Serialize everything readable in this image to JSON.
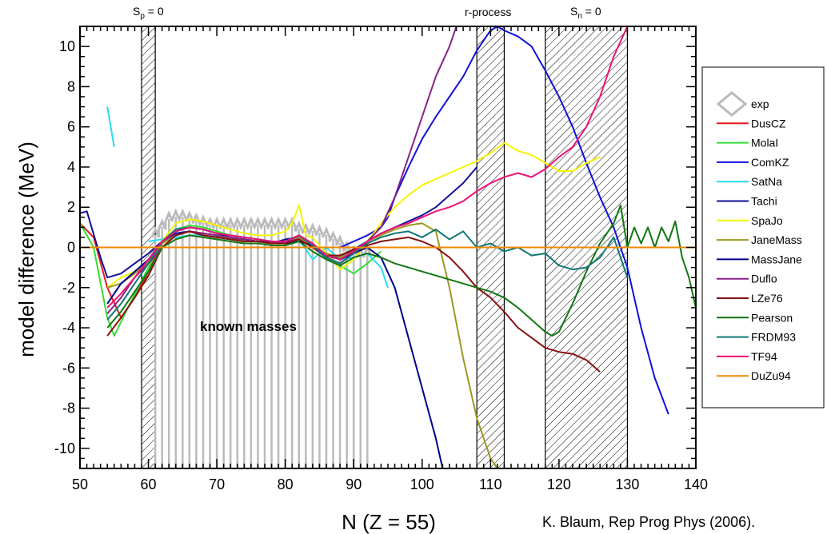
{
  "chart_data": {
    "type": "line",
    "xlabel": "N (Z = 55)",
    "ylabel": "model difference (MeV)",
    "xlim": [
      50,
      140
    ],
    "ylim": [
      -11,
      11
    ],
    "x_ticks": [
      50,
      60,
      70,
      80,
      90,
      100,
      110,
      120,
      130,
      140
    ],
    "y_ticks": [
      -10,
      -8,
      -6,
      -4,
      -2,
      0,
      2,
      4,
      6,
      8,
      10
    ],
    "grid": false,
    "legend_position": "right",
    "credit": "K. Blaum, Rep Prog Phys (2006).",
    "annotations": {
      "sp_label": "S",
      "sp_sub": "p",
      "sp_rest": " = 0",
      "sn_label": "S",
      "sn_sub": "n",
      "sn_rest": " = 0",
      "rprocess": "r-process",
      "known_masses": "known masses"
    },
    "hatched_regions": [
      [
        59,
        61
      ],
      [
        108,
        112
      ],
      [
        118,
        130
      ]
    ],
    "exp": {
      "name": "exp",
      "color": "#bbbbbb",
      "x_range": [
        61,
        92
      ],
      "y_top": [
        0.5,
        0.9,
        1.3,
        1.4,
        1.4,
        1.3,
        1.2,
        1.1,
        1.0,
        1.0,
        1.0,
        1.0,
        1.0,
        1.0,
        1.0,
        1.0,
        1.0,
        1.0,
        1.0,
        1.0,
        1.0,
        0.8,
        0.7,
        0.7,
        0.6,
        0.5,
        0.3,
        0.1,
        -0.2,
        -0.4,
        -0.5,
        -0.4
      ]
    },
    "series": [
      {
        "name": "DusCZ",
        "color": "#e41a1c",
        "x": [
          50,
          52,
          54,
          56,
          58,
          60,
          62,
          64,
          66,
          68,
          70,
          72,
          74,
          76,
          78,
          80,
          82,
          84,
          86,
          88,
          90,
          92
        ],
        "y": [
          1.2,
          0.5,
          -2.0,
          -3.5,
          -2.5,
          -1.2,
          0.2,
          0.6,
          0.8,
          0.7,
          0.6,
          0.4,
          0.4,
          0.3,
          0.2,
          0.2,
          0.5,
          0.1,
          -0.5,
          -0.8,
          -0.2,
          0.2
        ]
      },
      {
        "name": "MolaI",
        "color": "#33dd33",
        "x": [
          50,
          52,
          54,
          55,
          57,
          60,
          62,
          64,
          66,
          68,
          70,
          72,
          74,
          76,
          78,
          80,
          82,
          84,
          86,
          88,
          90,
          92,
          94
        ],
        "y": [
          1.2,
          0.0,
          -3.5,
          -4.4,
          -3.0,
          -1.0,
          0.3,
          0.9,
          1.1,
          1.0,
          0.8,
          0.6,
          0.5,
          0.4,
          0.3,
          0.3,
          0.6,
          0.2,
          -0.6,
          -0.9,
          -1.3,
          -0.8,
          -0.2
        ]
      },
      {
        "name": "ComKZ",
        "color": "#1111dd",
        "x": [
          88,
          90,
          92,
          94,
          95,
          96,
          98,
          100,
          102,
          104,
          106,
          108,
          110,
          111,
          112,
          114,
          116,
          118,
          120,
          122,
          124,
          126,
          128,
          130,
          132,
          134,
          136
        ],
        "y": [
          0.0,
          0.3,
          0.6,
          1.0,
          1.5,
          2.5,
          4.0,
          5.4,
          6.5,
          7.5,
          8.5,
          9.8,
          10.8,
          11.0,
          10.8,
          10.5,
          10.0,
          8.8,
          7.5,
          6.0,
          4.2,
          2.5,
          1.0,
          -1.0,
          -4.0,
          -6.5,
          -8.3
        ]
      },
      {
        "name": "SatNa",
        "color": "#22ddee",
        "x": [
          54,
          55,
          60,
          62,
          64,
          66,
          68,
          70,
          72,
          74,
          76,
          78,
          80,
          82,
          84,
          86,
          88,
          90,
          92,
          94,
          95
        ],
        "y": [
          7.0,
          5.0,
          0.3,
          0.4,
          0.5,
          0.6,
          0.6,
          0.5,
          0.4,
          0.3,
          0.3,
          0.2,
          0.3,
          0.4,
          -0.6,
          0.0,
          -0.6,
          -0.5,
          -0.3,
          -1.0,
          -2.0
        ],
        "gap_after_index": 1
      },
      {
        "name": "Tachi",
        "color": "#111199",
        "x": [
          50,
          51,
          53,
          54,
          56,
          58,
          60,
          62,
          64,
          66,
          68,
          70,
          72,
          74,
          76,
          78,
          80,
          82,
          84,
          86,
          88,
          90,
          92,
          94,
          96,
          98,
          100,
          102,
          104,
          106,
          108
        ],
        "y": [
          1.7,
          1.8,
          -0.5,
          -1.5,
          -1.3,
          -0.8,
          -0.3,
          0.3,
          0.7,
          0.8,
          0.6,
          0.5,
          0.4,
          0.3,
          0.3,
          0.2,
          0.4,
          0.5,
          0.0,
          -0.5,
          -0.5,
          -0.1,
          0.3,
          0.7,
          1.0,
          1.3,
          1.6,
          2.0,
          2.6,
          3.2,
          4.0
        ]
      },
      {
        "name": "SpaJo",
        "color": "#f5f500",
        "x": [
          54,
          56,
          58,
          60,
          62,
          64,
          66,
          68,
          70,
          72,
          74,
          76,
          78,
          80,
          81,
          82,
          83,
          84,
          86,
          88,
          90,
          92,
          94,
          96,
          98,
          100,
          102,
          104,
          106,
          108,
          110,
          112,
          114,
          116,
          118,
          120,
          122,
          124,
          126
        ],
        "y": [
          -2.0,
          -1.5,
          -1.2,
          -0.8,
          0.3,
          1.2,
          1.4,
          1.3,
          1.1,
          0.9,
          0.7,
          0.6,
          0.6,
          0.8,
          1.2,
          2.1,
          0.6,
          0.5,
          -0.3,
          -1.1,
          -0.6,
          0.3,
          1.2,
          2.0,
          2.6,
          3.1,
          3.4,
          3.7,
          4.0,
          4.3,
          4.7,
          5.2,
          4.8,
          4.6,
          4.2,
          3.8,
          3.8,
          4.2,
          4.5
        ]
      },
      {
        "name": "JaneMass",
        "color": "#999922",
        "x": [
          54,
          56,
          58,
          60,
          62,
          64,
          66,
          68,
          70,
          72,
          74,
          76,
          78,
          80,
          82,
          84,
          86,
          88,
          90,
          92,
          94,
          96,
          98,
          100,
          102,
          104,
          106,
          108,
          110,
          111
        ],
        "y": [
          -2.0,
          -1.8,
          -1.3,
          -0.7,
          0.2,
          0.6,
          0.8,
          0.7,
          0.6,
          0.4,
          0.3,
          0.3,
          0.2,
          0.2,
          0.5,
          0.0,
          -0.3,
          -0.5,
          -0.2,
          0.3,
          0.6,
          0.9,
          1.1,
          1.2,
          0.8,
          -2.0,
          -5.5,
          -8.5,
          -10.5,
          -11.0
        ]
      },
      {
        "name": "MassJane",
        "color": "#000088",
        "x": [
          54,
          56,
          58,
          60,
          62,
          64,
          66,
          68,
          70,
          72,
          74,
          76,
          78,
          80,
          82,
          84,
          86,
          88,
          90,
          92,
          94,
          96,
          98,
          100,
          102,
          103
        ],
        "y": [
          -2.8,
          -1.8,
          -1.2,
          -0.6,
          0.3,
          0.8,
          1.0,
          0.9,
          0.7,
          0.5,
          0.4,
          0.3,
          0.3,
          0.2,
          0.3,
          0.1,
          -0.4,
          -0.6,
          -0.3,
          0.0,
          -0.5,
          -2.0,
          -4.5,
          -7.0,
          -9.5,
          -11.0
        ]
      },
      {
        "name": "Duflo",
        "color": "#882288",
        "x": [
          54,
          56,
          58,
          60,
          62,
          64,
          66,
          68,
          70,
          72,
          74,
          76,
          78,
          80,
          82,
          84,
          86,
          88,
          90,
          92,
          94,
          96,
          98,
          100,
          102,
          104,
          105
        ],
        "y": [
          -3.3,
          -2.5,
          -1.5,
          -0.8,
          0.0,
          0.6,
          0.8,
          0.7,
          0.6,
          0.5,
          0.4,
          0.3,
          0.2,
          0.3,
          0.4,
          0.0,
          -0.5,
          -0.8,
          -0.3,
          0.3,
          1.0,
          2.5,
          4.5,
          6.5,
          8.5,
          10.0,
          11.0
        ]
      },
      {
        "name": "LZe76",
        "color": "#881111",
        "x": [
          54,
          56,
          58,
          60,
          62,
          64,
          66,
          68,
          70,
          72,
          74,
          76,
          78,
          80,
          82,
          84,
          86,
          88,
          90,
          92,
          94,
          96,
          98,
          100,
          102,
          104,
          106,
          108,
          110,
          112,
          114,
          116,
          118,
          120,
          122,
          124,
          126
        ],
        "y": [
          -4.4,
          -3.5,
          -2.5,
          -1.4,
          0.0,
          0.6,
          0.8,
          0.6,
          0.5,
          0.4,
          0.3,
          0.3,
          0.2,
          0.2,
          0.4,
          0.0,
          -0.4,
          -0.4,
          -0.1,
          0.1,
          0.3,
          0.4,
          0.5,
          0.3,
          0.0,
          -0.5,
          -1.2,
          -2.0,
          -2.5,
          -3.2,
          -4.0,
          -4.5,
          -5.0,
          -5.2,
          -5.3,
          -5.6,
          -6.2
        ]
      },
      {
        "name": "Pearson",
        "color": "#117711",
        "x": [
          54,
          56,
          58,
          60,
          62,
          64,
          66,
          68,
          70,
          72,
          74,
          76,
          78,
          80,
          82,
          84,
          86,
          88,
          90,
          92,
          94,
          96,
          98,
          100,
          102,
          104,
          106,
          108,
          110,
          112,
          114,
          116,
          118,
          119,
          120,
          122,
          124,
          126,
          128,
          129,
          130,
          131,
          132,
          133,
          134,
          135,
          136,
          137,
          138,
          139,
          140
        ],
        "y": [
          -4.0,
          -3.2,
          -2.2,
          -1.2,
          0.0,
          0.4,
          0.6,
          0.5,
          0.4,
          0.3,
          0.2,
          0.2,
          0.1,
          0.1,
          0.3,
          -0.2,
          -0.6,
          -0.9,
          -0.5,
          -0.3,
          -0.5,
          -0.8,
          -1.0,
          -1.2,
          -1.4,
          -1.6,
          -1.8,
          -2.0,
          -2.2,
          -2.5,
          -3.0,
          -3.6,
          -4.2,
          -4.4,
          -4.2,
          -2.8,
          -1.2,
          0.2,
          1.2,
          2.1,
          0.0,
          1.0,
          0.2,
          1.0,
          0.0,
          1.0,
          0.3,
          1.3,
          -0.5,
          -1.5,
          -3.0
        ]
      },
      {
        "name": "FRDM93",
        "color": "#117777",
        "x": [
          54,
          56,
          58,
          60,
          62,
          64,
          66,
          68,
          70,
          72,
          74,
          76,
          78,
          80,
          82,
          84,
          86,
          88,
          90,
          92,
          94,
          96,
          98,
          100,
          102,
          104,
          106,
          108,
          110,
          112,
          114,
          116,
          118,
          120,
          122,
          124,
          126,
          128,
          130
        ],
        "y": [
          -3.6,
          -2.8,
          -1.8,
          -0.8,
          0.3,
          0.9,
          1.0,
          0.9,
          0.7,
          0.6,
          0.5,
          0.4,
          0.3,
          0.3,
          0.6,
          0.1,
          -0.5,
          -0.8,
          -0.3,
          0.2,
          0.5,
          0.7,
          0.8,
          0.5,
          0.9,
          0.4,
          0.8,
          0.0,
          0.2,
          -0.2,
          0.0,
          -0.4,
          -0.3,
          -0.9,
          -1.1,
          -1.0,
          -0.5,
          0.5,
          -1.5
        ]
      },
      {
        "name": "TF94",
        "color": "#ee1177",
        "x": [
          54,
          56,
          58,
          60,
          62,
          64,
          66,
          68,
          70,
          72,
          74,
          76,
          78,
          80,
          82,
          84,
          86,
          88,
          90,
          92,
          94,
          96,
          98,
          100,
          102,
          104,
          106,
          108,
          110,
          112,
          114,
          116,
          118,
          120,
          122,
          124,
          126,
          128,
          130
        ],
        "y": [
          -3.0,
          -2.3,
          -1.5,
          -0.6,
          0.3,
          0.8,
          1.0,
          0.9,
          0.7,
          0.6,
          0.5,
          0.4,
          0.3,
          0.3,
          0.6,
          0.2,
          -0.4,
          -0.6,
          -0.2,
          0.3,
          0.7,
          1.0,
          1.2,
          1.5,
          1.8,
          2.0,
          2.3,
          2.8,
          3.2,
          3.5,
          3.7,
          3.5,
          3.9,
          4.5,
          5.0,
          6.0,
          7.5,
          9.5,
          11.0
        ]
      },
      {
        "name": "DuZu94",
        "color": "#ee8800",
        "x": [
          50,
          140
        ],
        "y": [
          0.0,
          0.0
        ]
      }
    ]
  }
}
